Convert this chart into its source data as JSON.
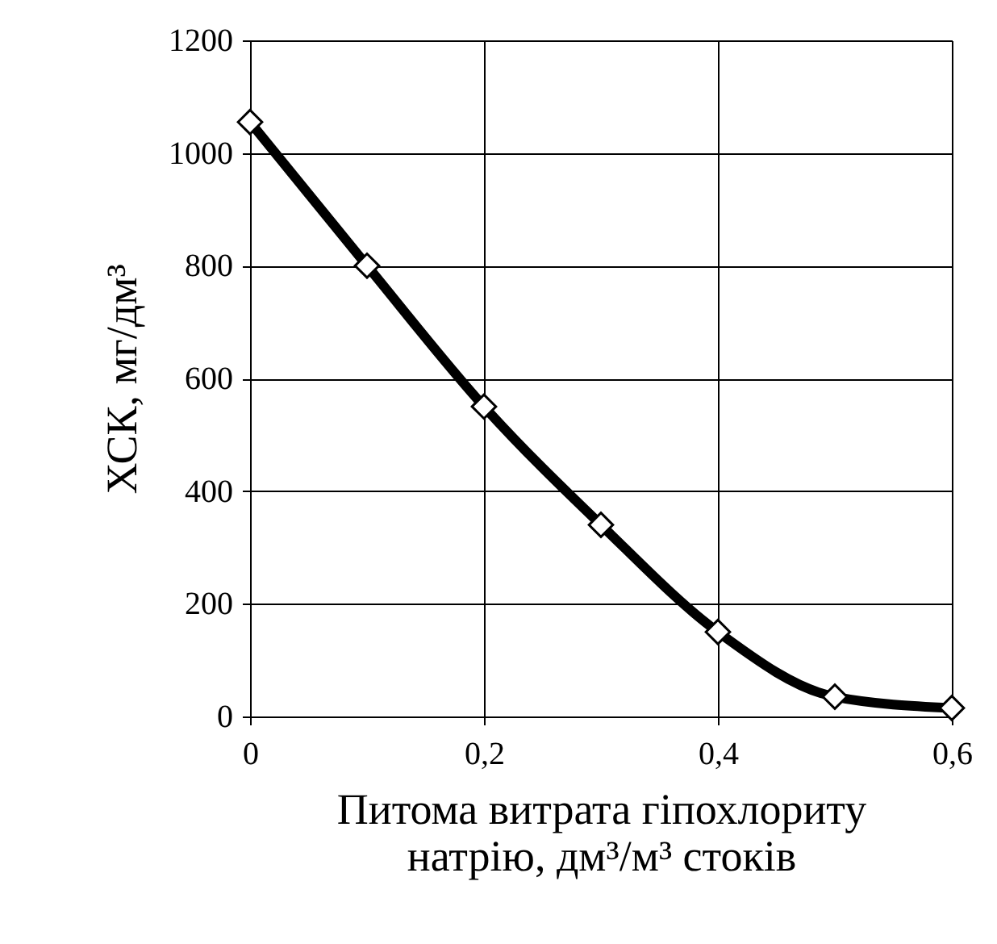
{
  "chart_data": {
    "type": "line",
    "xlabel": "Питома витрата гіпохлориту натрію, дм³/м³ стоків",
    "ylabel": "ХСК, мг/дм³",
    "x": [
      0,
      0.1,
      0.2,
      0.3,
      0.4,
      0.5,
      0.6
    ],
    "series": [
      {
        "color": "#000000",
        "values": [
          1055,
          800,
          550,
          340,
          150,
          35,
          15
        ]
      }
    ],
    "xlim": [
      0,
      0.6
    ],
    "xticks": [
      0,
      {
        "value": 0.2,
        "label": "0,2"
      },
      {
        "value": 0.4,
        "label": "0,4"
      },
      {
        "value": 0.6,
        "label": "0,6"
      }
    ],
    "ylim": [
      0,
      1200
    ],
    "yticks": [
      0,
      200,
      400,
      600,
      800,
      1000,
      1200
    ],
    "grid": true,
    "marker": "diamond",
    "line_style": "solid"
  }
}
